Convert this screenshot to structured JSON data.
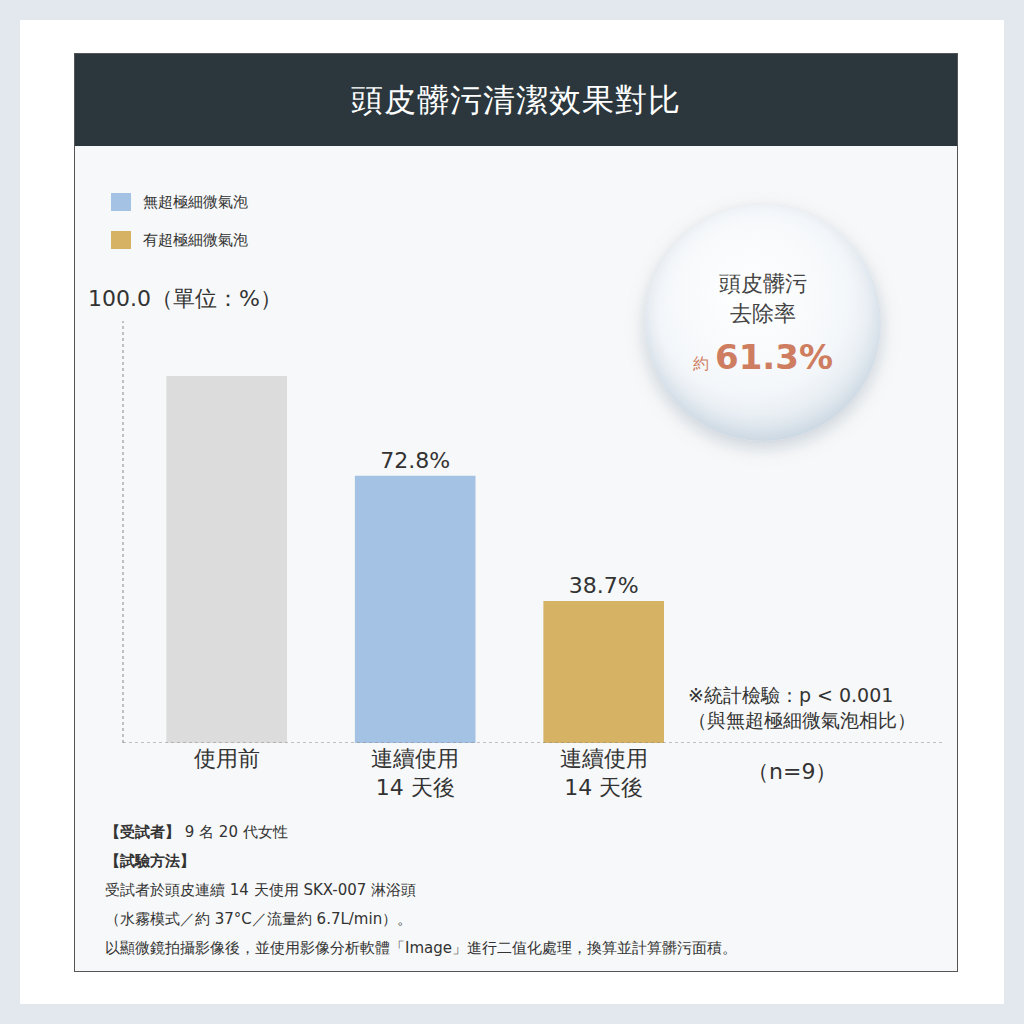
{
  "chart_data": {
    "type": "bar",
    "title": "頭皮髒污清潔效果對比",
    "y_axis_label": "100.0（單位：%）",
    "categories": [
      "使用前",
      "連續使用 14 天後",
      "連續使用 14 天後"
    ],
    "values": [
      100,
      72.8,
      38.7
    ],
    "value_labels": [
      null,
      "72.8%",
      "38.7%"
    ],
    "colors": [
      "#dcdcdc",
      "#a4c2e4",
      "#d5b264"
    ],
    "legend_entries": [
      {
        "name": "無超極細微氣泡",
        "color": "#a4c2e4"
      },
      {
        "name": "有超極細微氣泡",
        "color": "#d5b264"
      }
    ],
    "legend": "top left",
    "ylim": [
      0,
      115
    ],
    "grid": false,
    "data_labels": true,
    "tick_labels": "x",
    "annotations": {
      "stat_note": [
        "※統計檢驗：p < 0.001",
        "（與無超極細微氣泡相比）"
      ],
      "sample_size": "（n=9）"
    },
    "highlight": {
      "label_lines": [
        "頭皮髒污",
        "去除率"
      ],
      "prefix": "約",
      "value": 61.3,
      "value_label": "61.3%"
    },
    "footnotes": {
      "subjects_label": "【受試者】",
      "subjects": "9 名 20 代女性",
      "method_label": "【試驗方法】",
      "method_lines": [
        "受試者於頭皮連續 14 天使用 SKX-007 淋浴頭",
        "（水霧模式／約 37°C／流量約 6.7L/min）。",
        "以顯微鏡拍攝影像後，並使用影像分析軟體「Image」進行二值化處理，換算並計算髒污面積。"
      ]
    }
  }
}
